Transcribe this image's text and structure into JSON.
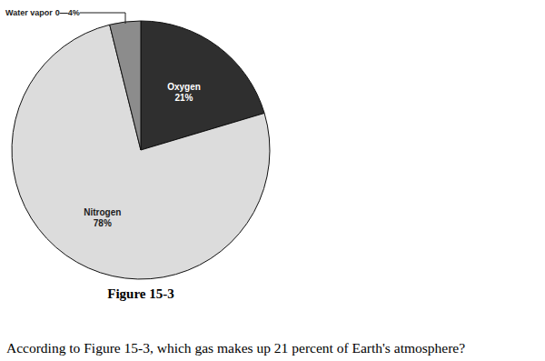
{
  "chart_data": {
    "type": "pie",
    "title": "Figure 15-3",
    "categories": [
      "Oxygen",
      "Nitrogen",
      "Water vapor"
    ],
    "values": [
      21,
      78,
      4
    ],
    "value_labels": [
      "21%",
      "78%",
      "0—4%"
    ],
    "colors": [
      "#2f2f2f",
      "#dcdcdc",
      "#8c8c8c"
    ],
    "data_labels": true
  },
  "question": "According to Figure 15-3, which gas makes up 21 percent of Earth's atmosphere?"
}
